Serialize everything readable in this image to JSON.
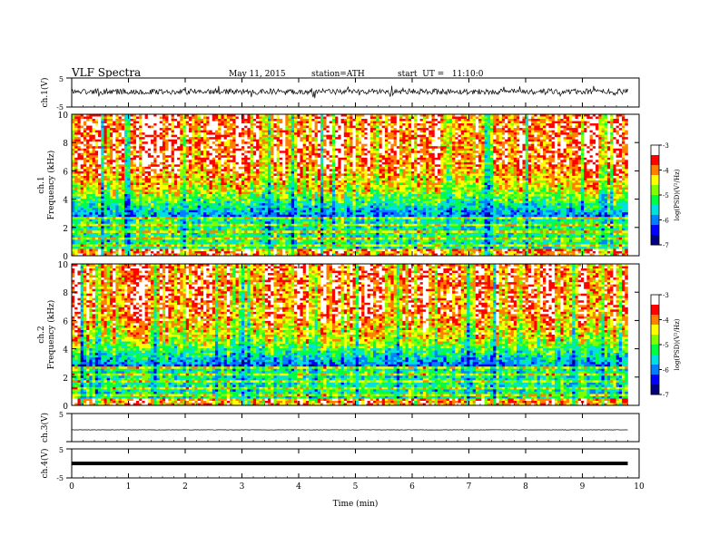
{
  "header": {
    "title": "VLF Spectra",
    "date": "May 11, 2015",
    "station": "station=ATH",
    "start": "start  UT =   11:10:0"
  },
  "chart_data": {
    "type": "heatmap",
    "xlabel": "Time  (min)",
    "xlim": [
      0,
      10
    ],
    "xticks": [
      0,
      1,
      2,
      3,
      4,
      5,
      6,
      7,
      8,
      9,
      10
    ],
    "data_end_min": 9.8,
    "panels": [
      {
        "kind": "waveform",
        "ylabel": "ch.1(V)",
        "ylim": [
          -5,
          5
        ],
        "ytick_labels": [
          "5",
          "-5"
        ],
        "amplitude_note": "noisy signal fluctuating roughly between -1.5 and 1.5 V around 0.3 V"
      },
      {
        "kind": "spectrogram",
        "ylabel": "Frequency  (kHz)",
        "channel": "ch.1",
        "ylim": [
          0,
          10
        ],
        "yticks": [
          0,
          2,
          4,
          6,
          8,
          10
        ],
        "colorbar": {
          "label": "log(PSD)(V²/Hz)",
          "range": [
            -7,
            -3
          ],
          "ticks": [
            "-3",
            "-4",
            "-5",
            "-6",
            "-7"
          ]
        }
      },
      {
        "kind": "spectrogram",
        "ylabel": "Frequency  (kHz)",
        "channel": "ch.2",
        "ylim": [
          0,
          10
        ],
        "yticks": [
          0,
          2,
          4,
          6,
          8,
          10
        ],
        "colorbar": {
          "label": "log(PSD)(V²/Hz)",
          "range": [
            -7,
            -3
          ],
          "ticks": [
            "-3",
            "-4",
            "-5",
            "-6",
            "-7"
          ]
        }
      },
      {
        "kind": "waveform",
        "ylabel": "ch.3(V)",
        "ylim": [
          -5,
          5
        ],
        "ytick_labels": [
          "5"
        ],
        "level": -0.8
      },
      {
        "kind": "waveform",
        "ylabel": "ch.4(V)",
        "ylim": [
          -5,
          5
        ],
        "ytick_labels": [
          "5",
          "-5"
        ],
        "level": 0
      }
    ]
  },
  "colors": {
    "colormap": [
      "#000080",
      "#0000ff",
      "#0080ff",
      "#00e0e0",
      "#00ff40",
      "#80ff00",
      "#ffff00",
      "#ff8000",
      "#ff0000",
      "#ffffff"
    ],
    "axis": "#000000",
    "trace": "#000000"
  }
}
